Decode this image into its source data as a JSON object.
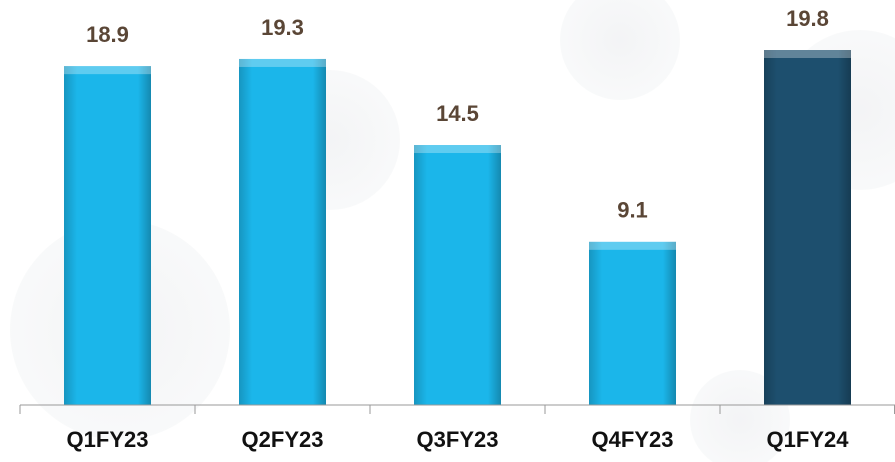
{
  "chart_data": {
    "type": "bar",
    "categories": [
      "Q1FY23",
      "Q2FY23",
      "Q3FY23",
      "Q4FY23",
      "Q1FY24"
    ],
    "values": [
      18.9,
      19.3,
      14.5,
      9.1,
      19.8
    ],
    "colors": [
      "#1bb6ea",
      "#1bb6ea",
      "#1bb6ea",
      "#1bb6ea",
      "#1d4f6e"
    ]
  }
}
